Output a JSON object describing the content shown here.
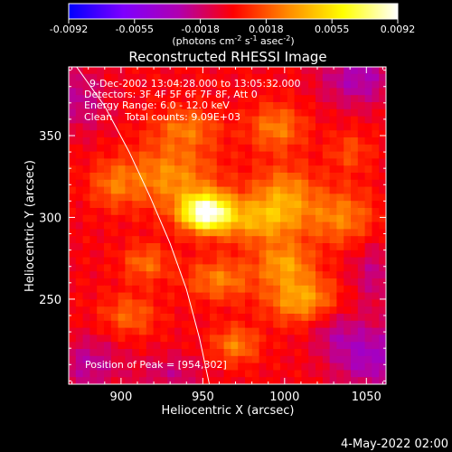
{
  "colorbar": {
    "ticks": [
      "-0.0092",
      "-0.0055",
      "-0.0018",
      "0.0018",
      "0.0055",
      "0.0092"
    ],
    "unit_label_parts": [
      "(photons cm",
      "-2",
      " s",
      "-1",
      " asec",
      "-2",
      ")"
    ]
  },
  "title": "Reconstructed RHESSI Image",
  "annotations": {
    "time_range": "9-Dec-2002 13:04:28.000 to 13:05:32.000",
    "detectors": "Detectors: 3F 4F 5F 6F 7F 8F, Att 0",
    "energy_range": "Energy Range: 6.0 - 12.0 keV",
    "clean_counts": "Clean    Total counts: 9.09E+03",
    "peak_position": "Position of Peak = [954,302]"
  },
  "footer_date": "4-May-2022 02:00",
  "chart_data": {
    "type": "heatmap",
    "title": "Reconstructed RHESSI Image",
    "xlabel": "Heliocentric X (arcsec)",
    "ylabel": "Heliocentric Y (arcsec)",
    "xlim": [
      868,
      1062
    ],
    "ylim": [
      198,
      392
    ],
    "x_ticks": [
      900,
      950,
      1000,
      1050
    ],
    "y_ticks": [
      250,
      300,
      350
    ],
    "colorbar_range": [
      -0.0092,
      0.0092
    ],
    "colormap": [
      "#0000ff",
      "#7e00ff",
      "#b000b0",
      "#ff0000",
      "#ff8a00",
      "#ffff00",
      "#ffffff"
    ],
    "peak": {
      "x": 954,
      "y": 302
    },
    "limb_curve": [
      [
        870,
        396
      ],
      [
        890,
        368
      ],
      [
        905,
        340
      ],
      [
        918,
        312
      ],
      [
        930,
        284
      ],
      [
        940,
        256
      ],
      [
        948,
        226
      ],
      [
        954,
        198
      ]
    ],
    "blobs": [
      {
        "x": 952,
        "y": 303,
        "sx": 11,
        "sy": 8,
        "a": 0.0095
      },
      {
        "x": 985,
        "y": 298,
        "sx": 18,
        "sy": 10,
        "a": 0.0038
      },
      {
        "x": 930,
        "y": 325,
        "sx": 20,
        "sy": 14,
        "a": 0.0034
      },
      {
        "x": 1010,
        "y": 250,
        "sx": 15,
        "sy": 10,
        "a": 0.004
      },
      {
        "x": 1000,
        "y": 315,
        "sx": 14,
        "sy": 12,
        "a": 0.0032
      },
      {
        "x": 995,
        "y": 355,
        "sx": 12,
        "sy": 10,
        "a": 0.003
      },
      {
        "x": 1035,
        "y": 300,
        "sx": 14,
        "sy": 12,
        "a": 0.003
      },
      {
        "x": 960,
        "y": 262,
        "sx": 14,
        "sy": 9,
        "a": 0.003
      },
      {
        "x": 1000,
        "y": 272,
        "sx": 12,
        "sy": 9,
        "a": 0.0036
      },
      {
        "x": 915,
        "y": 272,
        "sx": 10,
        "sy": 8,
        "a": 0.0026
      },
      {
        "x": 905,
        "y": 240,
        "sx": 12,
        "sy": 9,
        "a": 0.0024
      },
      {
        "x": 970,
        "y": 222,
        "sx": 10,
        "sy": 8,
        "a": 0.003
      },
      {
        "x": 895,
        "y": 320,
        "sx": 10,
        "sy": 10,
        "a": 0.0022
      },
      {
        "x": 940,
        "y": 355,
        "sx": 14,
        "sy": 9,
        "a": 0.0026
      },
      {
        "x": 1040,
        "y": 340,
        "sx": 9,
        "sy": 9,
        "a": 0.0018
      },
      {
        "x": 1052,
        "y": 215,
        "sx": 16,
        "sy": 14,
        "a": -0.0034
      },
      {
        "x": 1045,
        "y": 385,
        "sx": 16,
        "sy": 12,
        "a": -0.003
      },
      {
        "x": 880,
        "y": 210,
        "sx": 14,
        "sy": 12,
        "a": -0.0024
      },
      {
        "x": 875,
        "y": 372,
        "sx": 12,
        "sy": 14,
        "a": -0.0022
      },
      {
        "x": 1055,
        "y": 265,
        "sx": 10,
        "sy": 14,
        "a": -0.002
      },
      {
        "x": 930,
        "y": 205,
        "sx": 14,
        "sy": 8,
        "a": -0.0018
      },
      {
        "x": 1030,
        "y": 230,
        "sx": 10,
        "sy": 10,
        "a": -0.0016
      }
    ],
    "background": -0.0002
  }
}
